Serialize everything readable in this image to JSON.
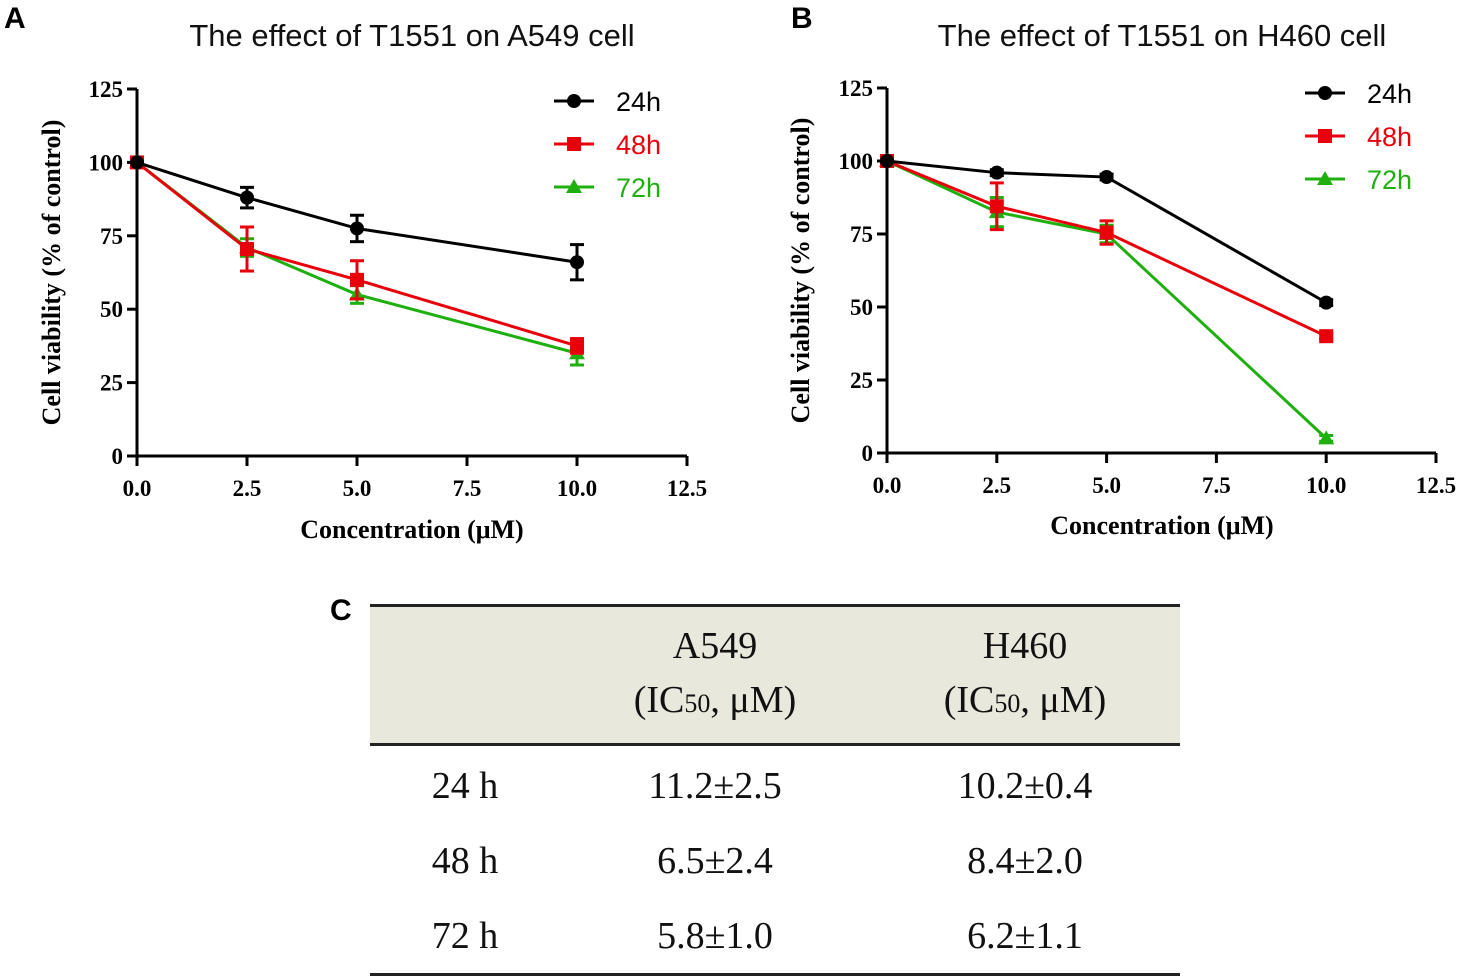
{
  "panels": {
    "a": "A",
    "b": "B",
    "c": "C"
  },
  "chart_data": [
    {
      "type": "line",
      "panel": "A",
      "title": "The effect of T1551 on A549 cell",
      "xlabel": "Concentration (μM)",
      "ylabel": "Cell viability (% of control)",
      "xlim": [
        0,
        12.5
      ],
      "ylim": [
        0,
        125
      ],
      "xticks": [
        "0.0",
        "2.5",
        "5.0",
        "7.5",
        "10.0",
        "12.5"
      ],
      "yticks": [
        "0",
        "25",
        "50",
        "75",
        "100",
        "125"
      ],
      "legend_position": "top-right",
      "x": [
        0,
        2.5,
        5,
        10
      ],
      "series": [
        {
          "name": "24h",
          "color": "#000000",
          "marker": "circle",
          "values": [
            100,
            88,
            77.5,
            66
          ],
          "errors": [
            0,
            3.5,
            4.5,
            6
          ]
        },
        {
          "name": "48h",
          "color": "#e8000b",
          "marker": "square",
          "values": [
            100,
            70.5,
            60,
            37.5
          ],
          "errors": [
            0,
            7.5,
            6.5,
            2.5
          ]
        },
        {
          "name": "72h",
          "color": "#1fb010",
          "marker": "triangle",
          "values": [
            100,
            71,
            55,
            35
          ],
          "errors": [
            0,
            3,
            3,
            4
          ]
        }
      ]
    },
    {
      "type": "line",
      "panel": "B",
      "title": "The effect of T1551 on H460 cell",
      "xlabel": "Concentration (μM)",
      "ylabel": "Cell viability (% of control)",
      "xlim": [
        0,
        12.5
      ],
      "ylim": [
        0,
        125
      ],
      "xticks": [
        "0.0",
        "2.5",
        "5.0",
        "7.5",
        "10.0",
        "12.5"
      ],
      "yticks": [
        "0",
        "25",
        "50",
        "75",
        "100",
        "125"
      ],
      "legend_position": "top-right",
      "x": [
        0,
        2.5,
        5,
        10
      ],
      "series": [
        {
          "name": "24h",
          "color": "#000000",
          "marker": "circle",
          "values": [
            100,
            96,
            94.5,
            51.5
          ],
          "errors": [
            0,
            1,
            1,
            1
          ]
        },
        {
          "name": "48h",
          "color": "#e8000b",
          "marker": "square",
          "values": [
            100,
            84.5,
            75.5,
            40
          ],
          "errors": [
            0,
            8,
            4,
            1
          ]
        },
        {
          "name": "72h",
          "color": "#1fb010",
          "marker": "triangle",
          "values": [
            100,
            82.5,
            75,
            5
          ],
          "errors": [
            0,
            5,
            3,
            1
          ]
        }
      ]
    }
  ],
  "table": {
    "headers": [
      {
        "name": "",
        "unit_open": "",
        "unit_sub": "",
        "unit_close": ""
      },
      {
        "name": "A549",
        "unit_open": "(IC",
        "unit_sub": "50",
        "unit_close": ", μM)"
      },
      {
        "name": "H460",
        "unit_open": "(IC",
        "unit_sub": "50",
        "unit_close": ", μM)"
      }
    ],
    "rows": [
      [
        "24 h",
        "11.2±2.5",
        "10.2±0.4"
      ],
      [
        "48 h",
        "6.5±2.4",
        "8.4±2.0"
      ],
      [
        "72 h",
        "5.8±1.0",
        "6.2±1.1"
      ]
    ]
  }
}
